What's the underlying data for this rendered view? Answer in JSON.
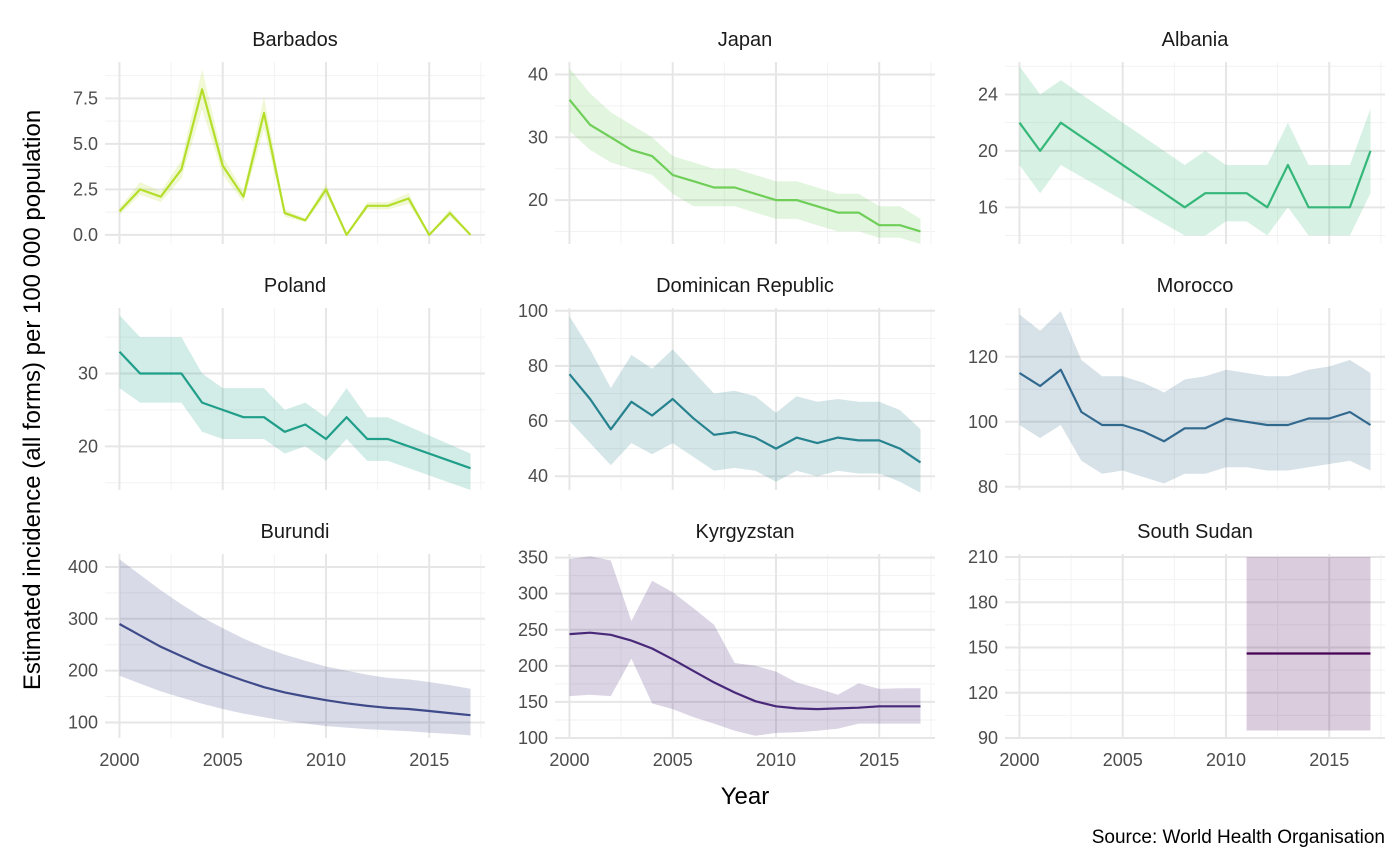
{
  "chart_data": {
    "type": "line",
    "xlabel": "Year",
    "ylabel": "Estimated incidence (all forms) per 100 000 population",
    "caption": "Source: World Health Organisation",
    "x_ticks": [
      "2000",
      "2005",
      "2010",
      "2015"
    ],
    "x_range": [
      1999.3,
      2017.7
    ],
    "grid": true,
    "legend": "none",
    "panels": [
      {
        "title": "Barbados",
        "color": "#b5de2b",
        "ylim": [
          -0.5,
          9.5
        ],
        "y_ticks": [
          0,
          2.5,
          5,
          7.5
        ],
        "y_tick_labels": [
          "0.0",
          "2.5",
          "5.0",
          "7.5"
        ],
        "x": [
          2000,
          2001,
          2002,
          2003,
          2004,
          2005,
          2006,
          2007,
          2008,
          2009,
          2010,
          2011,
          2012,
          2013,
          2014,
          2015,
          2016,
          2017
        ],
        "y": [
          1.3,
          2.5,
          2.1,
          3.6,
          8.0,
          3.8,
          2.1,
          6.7,
          1.2,
          0.8,
          2.5,
          0.0,
          1.6,
          1.6,
          2.0,
          0.0,
          1.2,
          0.0
        ],
        "lo": [
          1.1,
          2.2,
          1.8,
          3.1,
          6.9,
          3.3,
          1.8,
          5.8,
          1.0,
          0.7,
          2.2,
          0.0,
          1.4,
          1.4,
          1.7,
          0.0,
          1.0,
          0.0
        ],
        "hi": [
          1.5,
          2.9,
          2.4,
          4.1,
          9.1,
          4.3,
          2.4,
          7.6,
          1.4,
          0.9,
          2.8,
          0.0,
          1.8,
          1.8,
          2.3,
          0.0,
          1.4,
          0.0
        ]
      },
      {
        "title": "Japan",
        "color": "#6ece58",
        "ylim": [
          13,
          42
        ],
        "y_ticks": [
          20,
          30,
          40
        ],
        "y_tick_labels": [
          "20",
          "30",
          "40"
        ],
        "x": [
          2000,
          2001,
          2002,
          2003,
          2004,
          2005,
          2006,
          2007,
          2008,
          2009,
          2010,
          2011,
          2012,
          2013,
          2014,
          2015,
          2016,
          2017
        ],
        "y": [
          36,
          32,
          30,
          28,
          27,
          24,
          23,
          22,
          22,
          21,
          20,
          20,
          19,
          18,
          18,
          16,
          16,
          15
        ],
        "lo": [
          31,
          28,
          26,
          25,
          24,
          21,
          19,
          19,
          19,
          18,
          17,
          17,
          16,
          15,
          15,
          14,
          14,
          13
        ],
        "hi": [
          41,
          37,
          34,
          32,
          30,
          27,
          26,
          25,
          25,
          24,
          23,
          23,
          22,
          21,
          21,
          19,
          19,
          17
        ]
      },
      {
        "title": "Albania",
        "color": "#35b779",
        "ylim": [
          13.4,
          26.3
        ],
        "y_ticks": [
          16,
          20,
          24
        ],
        "y_tick_labels": [
          "16",
          "20",
          "24"
        ],
        "x": [
          2000,
          2001,
          2002,
          2008,
          2009,
          2010,
          2011,
          2012,
          2013,
          2014,
          2015,
          2016,
          2017
        ],
        "y": [
          22,
          20,
          22,
          16,
          17,
          17,
          17,
          16,
          19,
          16,
          16,
          16,
          20
        ],
        "lo": [
          19,
          17,
          19,
          14,
          14,
          15,
          15,
          14,
          16,
          14,
          14,
          14,
          17
        ],
        "hi": [
          26,
          24,
          25,
          19,
          20,
          19,
          19,
          19,
          22,
          19,
          19,
          19,
          23
        ]
      },
      {
        "title": "Poland",
        "color": "#1f9e89",
        "ylim": [
          14,
          39
        ],
        "y_ticks": [
          20,
          30
        ],
        "y_tick_labels": [
          "20",
          "30"
        ],
        "x": [
          2000,
          2001,
          2002,
          2003,
          2004,
          2005,
          2006,
          2007,
          2008,
          2009,
          2010,
          2011,
          2012,
          2013,
          2017
        ],
        "y": [
          33,
          30,
          30,
          30,
          26,
          25,
          24,
          24,
          22,
          23,
          21,
          24,
          21,
          21,
          17
        ],
        "lo": [
          28,
          26,
          26,
          26,
          22,
          21,
          21,
          21,
          19,
          20,
          18,
          21,
          18,
          18,
          14
        ],
        "hi": [
          38,
          35,
          35,
          35,
          30,
          28,
          28,
          28,
          25,
          26,
          24,
          28,
          24,
          24,
          19
        ]
      },
      {
        "title": "Dominican Republic",
        "color": "#26828e",
        "ylim": [
          35,
          101
        ],
        "y_ticks": [
          40,
          60,
          80,
          100
        ],
        "y_tick_labels": [
          "40",
          "60",
          "80",
          "100"
        ],
        "x": [
          2000,
          2001,
          2002,
          2003,
          2004,
          2005,
          2006,
          2007,
          2008,
          2009,
          2010,
          2011,
          2012,
          2013,
          2014,
          2015,
          2016,
          2017
        ],
        "y": [
          77,
          68,
          57,
          67,
          62,
          68,
          61,
          55,
          56,
          54,
          50,
          54,
          52,
          54,
          53,
          53,
          50,
          45
        ],
        "lo": [
          60,
          52,
          44,
          52,
          48,
          52,
          47,
          42,
          43,
          42,
          38,
          42,
          40,
          42,
          41,
          41,
          38,
          34
        ],
        "hi": [
          98,
          86,
          72,
          84,
          79,
          86,
          78,
          70,
          71,
          69,
          63,
          69,
          67,
          68,
          67,
          67,
          64,
          57
        ]
      },
      {
        "title": "Morocco",
        "color": "#31688e",
        "ylim": [
          79,
          135
        ],
        "y_ticks": [
          80,
          100,
          120
        ],
        "y_tick_labels": [
          "80",
          "100",
          "120"
        ],
        "x": [
          2000,
          2001,
          2002,
          2003,
          2004,
          2005,
          2006,
          2007,
          2008,
          2009,
          2010,
          2011,
          2012,
          2013,
          2014,
          2015,
          2016,
          2017
        ],
        "y": [
          115,
          111,
          116,
          103,
          99,
          99,
          97,
          94,
          98,
          98,
          101,
          100,
          99,
          99,
          101,
          101,
          103,
          99
        ],
        "lo": [
          99,
          95,
          99,
          88,
          84,
          85,
          83,
          81,
          84,
          84,
          86,
          86,
          85,
          85,
          86,
          87,
          88,
          85
        ],
        "hi": [
          133,
          128,
          134,
          119,
          114,
          114,
          112,
          109,
          113,
          114,
          116,
          115,
          114,
          114,
          116,
          117,
          119,
          115
        ]
      },
      {
        "title": "Burundi",
        "color": "#3e4a89",
        "ylim": [
          70,
          425
        ],
        "y_ticks": [
          100,
          200,
          300,
          400
        ],
        "y_tick_labels": [
          "100",
          "200",
          "300",
          "400"
        ],
        "x": [
          2000,
          2001,
          2002,
          2003,
          2004,
          2005,
          2006,
          2007,
          2008,
          2009,
          2010,
          2011,
          2012,
          2013,
          2014,
          2015,
          2016,
          2017
        ],
        "y": [
          290,
          268,
          246,
          228,
          210,
          195,
          181,
          168,
          158,
          150,
          143,
          137,
          132,
          128,
          126,
          122,
          118,
          114
        ],
        "lo": [
          190,
          175,
          160,
          148,
          136,
          126,
          117,
          110,
          103,
          98,
          93,
          90,
          87,
          85,
          83,
          80,
          78,
          75
        ],
        "hi": [
          415,
          385,
          355,
          328,
          303,
          282,
          262,
          245,
          231,
          219,
          208,
          200,
          192,
          186,
          183,
          178,
          172,
          165
        ]
      },
      {
        "title": "Kyrgyzstan",
        "color": "#482878",
        "ylim": [
          100,
          355
        ],
        "y_ticks": [
          100,
          150,
          200,
          250,
          300,
          350
        ],
        "y_tick_labels": [
          "100",
          "150",
          "200",
          "250",
          "300",
          "350"
        ],
        "x": [
          2000,
          2001,
          2002,
          2003,
          2004,
          2005,
          2006,
          2007,
          2008,
          2009,
          2010,
          2011,
          2012,
          2013,
          2014,
          2015,
          2016,
          2017
        ],
        "y": [
          244,
          246,
          243,
          235,
          224,
          209,
          193,
          177,
          163,
          151,
          144,
          141,
          140,
          141,
          142,
          144,
          144,
          144
        ],
        "lo": [
          158,
          160,
          158,
          210,
          148,
          140,
          129,
          120,
          110,
          103,
          107,
          108,
          110,
          113,
          120,
          120,
          120,
          120
        ],
        "hi": [
          348,
          352,
          346,
          262,
          318,
          302,
          280,
          257,
          204,
          200,
          192,
          177,
          169,
          160,
          176,
          168,
          169,
          169
        ]
      },
      {
        "title": "South Sudan",
        "color": "#440154",
        "ylim": [
          90,
          212
        ],
        "y_ticks": [
          90,
          120,
          150,
          180,
          210
        ],
        "y_tick_labels": [
          "90",
          "120",
          "150",
          "180",
          "210"
        ],
        "x": [
          2011,
          2012,
          2013,
          2014,
          2015,
          2016,
          2017
        ],
        "y": [
          146,
          146,
          146,
          146,
          146,
          146,
          146
        ],
        "lo": [
          95,
          95,
          95,
          95,
          95,
          95,
          95
        ],
        "hi": [
          210,
          210,
          210,
          210,
          210,
          210,
          210
        ]
      }
    ]
  }
}
